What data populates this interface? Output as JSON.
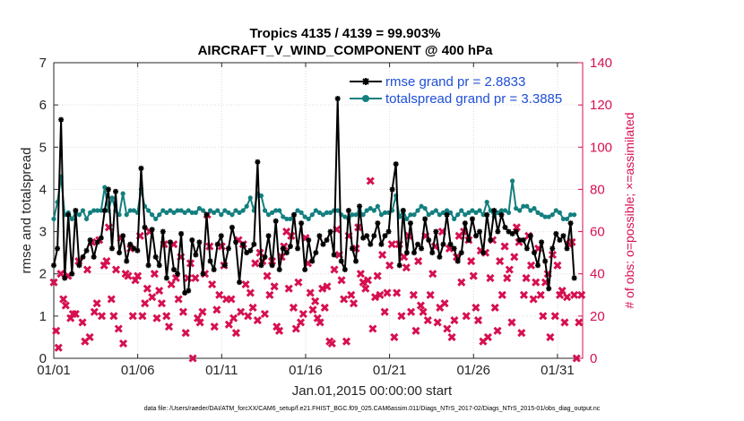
{
  "chart_data": {
    "type": "line",
    "title_line1": "Tropics 4135 / 4139 = 99.903%",
    "title_line2": "AIRCRAFT_V_WIND_COMPONENT @ 400 hPa",
    "xlabel": "Jan.01,2015 00:00:00 start",
    "ylabel": "rmse and totalspread",
    "y2label": "# of obs: o=possible; ×=assimilated",
    "footnote": "data file: /Users/raeder/DAI/ATM_forcXX/CAM6_setup/f.e21.FHIST_BGC.f09_025.CAM6assim.011/Diags_NTrS_2017-02/Diags_NTrS_2015-01/obs_diag_output.nc",
    "x_tick_labels": [
      "01/01",
      "01/06",
      "01/11",
      "01/16",
      "01/21",
      "01/26",
      "01/31"
    ],
    "x_tick_days": [
      0,
      5,
      10,
      15,
      20,
      25,
      30
    ],
    "xlim": [
      0,
      31.5
    ],
    "ylim": [
      0,
      7
    ],
    "y_ticks": [
      0,
      1,
      2,
      3,
      4,
      5,
      6,
      7
    ],
    "y2lim": [
      0,
      140
    ],
    "y2_ticks": [
      0,
      20,
      40,
      60,
      80,
      100,
      120,
      140
    ],
    "grid": true,
    "legend_position": "top-right",
    "series": [
      {
        "name": "rmse grand pr = 2.8833",
        "color": "#000000",
        "marker": "star",
        "values": [
          2.2,
          2.6,
          5.65,
          1.9,
          3.4,
          2.0,
          3.5,
          2.2,
          2.4,
          2.55,
          2.8,
          2.4,
          2.75,
          2.85,
          3.5,
          4.0,
          2.6,
          3.95,
          2.5,
          2.9,
          2.3,
          2.7,
          2.6,
          2.55,
          4.5,
          3.1,
          2.2,
          3.05,
          2.4,
          2.2,
          3.0,
          1.9,
          2.75,
          2.1,
          2.0,
          2.95,
          1.55,
          1.6,
          2.8,
          2.45,
          2.75,
          2.0,
          3.4,
          2.3,
          2.1,
          2.7,
          2.9,
          2.2,
          2.6,
          3.1,
          2.75,
          1.8,
          2.7,
          2.5,
          2.55,
          2.7,
          4.65,
          2.2,
          2.4,
          2.9,
          2.2,
          3.25,
          2.1,
          2.6,
          2.5,
          2.65,
          3.4,
          2.6,
          3.2,
          2.1,
          2.8,
          2.3,
          2.5,
          2.9,
          2.7,
          2.8,
          3.0,
          2.45,
          6.15,
          2.3,
          2.1,
          3.5,
          2.6,
          2.3,
          3.6,
          2.85,
          2.9,
          2.7,
          2.9,
          3.2,
          2.7,
          2.9,
          3.0,
          4.0,
          4.6,
          2.2,
          3.5,
          2.5,
          3.2,
          2.5,
          2.7,
          2.6,
          3.3,
          2.8,
          2.5,
          3.0,
          2.4,
          2.7,
          3.4,
          2.7,
          2.6,
          2.3,
          2.5,
          3.2,
          2.8,
          3.3,
          2.9,
          3.0,
          2.5,
          3.4,
          2.8,
          3.5,
          3.0,
          3.4,
          3.1,
          3.0,
          2.95,
          3.0,
          2.8,
          2.8,
          2.6,
          2.9,
          2.5,
          2.2,
          2.75,
          2.3,
          1.65,
          2.6,
          2.95,
          2.8,
          2.9,
          2.6,
          3.2,
          1.9
        ]
      },
      {
        "name": "totalspread grand pr = 3.3885",
        "color": "#137f7f",
        "marker": "circle",
        "values": [
          3.3,
          3.7,
          4.3,
          3.4,
          3.45,
          3.3,
          3.45,
          3.4,
          3.5,
          3.3,
          3.45,
          3.5,
          3.5,
          3.5,
          4.05,
          3.5,
          3.8,
          3.5,
          3.4,
          3.9,
          3.4,
          3.5,
          3.5,
          3.45,
          4.0,
          3.6,
          3.5,
          3.4,
          3.3,
          3.4,
          3.5,
          3.45,
          3.5,
          3.45,
          3.5,
          3.5,
          3.45,
          3.5,
          3.45,
          3.45,
          3.55,
          3.5,
          3.4,
          3.5,
          3.45,
          3.5,
          3.4,
          3.5,
          3.45,
          3.4,
          3.5,
          3.45,
          3.5,
          3.6,
          3.8,
          3.5,
          3.9,
          3.85,
          3.5,
          3.4,
          3.45,
          3.5,
          3.5,
          3.35,
          3.3,
          3.3,
          3.4,
          3.5,
          3.45,
          3.35,
          3.3,
          3.4,
          3.5,
          3.45,
          3.4,
          3.45,
          3.45,
          3.5,
          3.5,
          3.4,
          3.35,
          3.3,
          3.4,
          3.4,
          3.5,
          3.4,
          3.5,
          3.55,
          3.5,
          3.6,
          3.4,
          3.45,
          3.45,
          3.5,
          3.85,
          3.35,
          3.5,
          3.3,
          3.4,
          3.4,
          3.5,
          3.6,
          3.55,
          3.4,
          3.45,
          3.5,
          3.4,
          3.45,
          3.5,
          3.45,
          3.3,
          3.4,
          3.5,
          3.4,
          3.45,
          3.5,
          3.45,
          3.5,
          3.4,
          3.7,
          3.5,
          3.35,
          3.45,
          3.5,
          3.5,
          3.45,
          4.2,
          3.55,
          3.5,
          3.6,
          3.6,
          3.5,
          3.55,
          3.45,
          3.4,
          3.35,
          3.35,
          3.4,
          3.5,
          3.45,
          3.3,
          3.3,
          3.4,
          3.4
        ]
      },
      {
        "name": "obs possible/assimilated",
        "color": "#d6104f",
        "marker": "x",
        "axis": "right",
        "points": [
          [
            0.0,
            36
          ],
          [
            0.14,
            13
          ],
          [
            0.28,
            5
          ],
          [
            0.42,
            40
          ],
          [
            0.57,
            28
          ],
          [
            0.71,
            25
          ],
          [
            0.85,
            39
          ],
          [
            1.0,
            19
          ],
          [
            1.14,
            21
          ],
          [
            1.3,
            21
          ],
          [
            1.48,
            46
          ],
          [
            1.71,
            17
          ],
          [
            1.86,
            8
          ],
          [
            2.0,
            42
          ],
          [
            2.14,
            10
          ],
          [
            2.28,
            55
          ],
          [
            2.42,
            22
          ],
          [
            2.57,
            26
          ],
          [
            2.71,
            56
          ],
          [
            2.86,
            20
          ],
          [
            3.0,
            44
          ],
          [
            3.14,
            46
          ],
          [
            3.28,
            62
          ],
          [
            3.43,
            28
          ],
          [
            3.57,
            20
          ],
          [
            3.71,
            42
          ],
          [
            3.86,
            14
          ],
          [
            4.0,
            57
          ],
          [
            4.14,
            7
          ],
          [
            4.28,
            40
          ],
          [
            4.43,
            39
          ],
          [
            4.57,
            52
          ],
          [
            4.71,
            20
          ],
          [
            4.86,
            37
          ],
          [
            5.0,
            39
          ],
          [
            5.14,
            58
          ],
          [
            5.28,
            20
          ],
          [
            5.43,
            26
          ],
          [
            5.57,
            33
          ],
          [
            5.71,
            60
          ],
          [
            5.86,
            29
          ],
          [
            6.0,
            40
          ],
          [
            6.14,
            19
          ],
          [
            6.28,
            32
          ],
          [
            6.43,
            26
          ],
          [
            6.57,
            54
          ],
          [
            6.71,
            20
          ],
          [
            6.86,
            15
          ],
          [
            7.0,
            35
          ],
          [
            7.14,
            54
          ],
          [
            7.28,
            38
          ],
          [
            7.43,
            28
          ],
          [
            7.57,
            48
          ],
          [
            7.71,
            22
          ],
          [
            7.86,
            12
          ],
          [
            8.0,
            38
          ],
          [
            8.14,
            45
          ],
          [
            8.28,
            0
          ],
          [
            8.43,
            38
          ],
          [
            8.57,
            19
          ],
          [
            8.71,
            17
          ],
          [
            8.86,
            22
          ],
          [
            9.0,
            40
          ],
          [
            9.14,
            68
          ],
          [
            9.28,
            53
          ],
          [
            9.43,
            35
          ],
          [
            9.57,
            15
          ],
          [
            9.71,
            23
          ],
          [
            9.86,
            30
          ],
          [
            10.0,
            53
          ],
          [
            10.14,
            44
          ],
          [
            10.28,
            28
          ],
          [
            10.43,
            16
          ],
          [
            10.57,
            28
          ],
          [
            10.71,
            19
          ],
          [
            10.86,
            12
          ],
          [
            11.0,
            56
          ],
          [
            11.14,
            22
          ],
          [
            11.28,
            54
          ],
          [
            11.43,
            35
          ],
          [
            11.57,
            20
          ],
          [
            11.71,
            31
          ],
          [
            11.86,
            24
          ],
          [
            12.0,
            45
          ],
          [
            12.14,
            18
          ],
          [
            12.28,
            50
          ],
          [
            12.43,
            46
          ],
          [
            12.57,
            21
          ],
          [
            12.71,
            39
          ],
          [
            12.86,
            30
          ],
          [
            13.0,
            46
          ],
          [
            13.14,
            34
          ],
          [
            13.28,
            15
          ],
          [
            13.43,
            13
          ],
          [
            13.57,
            48
          ],
          [
            13.71,
            53
          ],
          [
            13.86,
            60
          ],
          [
            14.0,
            33
          ],
          [
            14.14,
            58
          ],
          [
            14.28,
            24
          ],
          [
            14.43,
            14
          ],
          [
            14.57,
            36
          ],
          [
            14.71,
            17
          ],
          [
            14.86,
            21
          ],
          [
            15.0,
            57
          ],
          [
            15.14,
            45
          ],
          [
            15.28,
            31
          ],
          [
            15.43,
            23
          ],
          [
            15.57,
            27
          ],
          [
            15.71,
            19
          ],
          [
            15.86,
            17
          ],
          [
            16.0,
            33
          ],
          [
            16.14,
            24
          ],
          [
            16.28,
            34
          ],
          [
            16.43,
            8
          ],
          [
            16.57,
            7
          ],
          [
            16.71,
            42
          ],
          [
            16.86,
            61
          ],
          [
            17.0,
            49
          ],
          [
            17.14,
            37
          ],
          [
            17.28,
            28
          ],
          [
            17.43,
            8
          ],
          [
            17.57,
            58
          ],
          [
            17.71,
            30
          ],
          [
            17.86,
            26
          ],
          [
            18.0,
            52
          ],
          [
            18.14,
            62
          ],
          [
            18.28,
            40
          ],
          [
            18.43,
            36
          ],
          [
            18.57,
            33
          ],
          [
            18.71,
            37
          ],
          [
            18.86,
            84
          ],
          [
            19.0,
            14
          ],
          [
            19.14,
            29
          ],
          [
            19.28,
            39
          ],
          [
            19.43,
            30
          ],
          [
            19.57,
            49
          ],
          [
            19.71,
            22
          ],
          [
            19.86,
            31
          ],
          [
            20.0,
            44
          ],
          [
            20.14,
            54
          ],
          [
            20.28,
            10
          ],
          [
            20.43,
            31
          ],
          [
            20.57,
            54
          ],
          [
            20.71,
            20
          ],
          [
            20.86,
            48
          ],
          [
            21.0,
            43
          ],
          [
            21.14,
            58
          ],
          [
            21.28,
            22
          ],
          [
            21.43,
            30
          ],
          [
            21.57,
            13
          ],
          [
            21.71,
            46
          ],
          [
            21.86,
            25
          ],
          [
            22.0,
            22
          ],
          [
            22.14,
            58
          ],
          [
            22.28,
            18
          ],
          [
            22.43,
            30
          ],
          [
            22.57,
            40
          ],
          [
            22.71,
            53
          ],
          [
            22.86,
            17
          ],
          [
            23.0,
            24
          ],
          [
            23.14,
            60
          ],
          [
            23.28,
            26
          ],
          [
            23.43,
            14
          ],
          [
            23.57,
            52
          ],
          [
            23.71,
            10
          ],
          [
            23.86,
            18
          ],
          [
            24.0,
            48
          ],
          [
            24.14,
            58
          ],
          [
            24.28,
            36
          ],
          [
            24.43,
            60
          ],
          [
            24.57,
            20
          ],
          [
            24.71,
            56
          ],
          [
            24.86,
            46
          ],
          [
            25.0,
            39
          ],
          [
            25.14,
            24
          ],
          [
            25.28,
            18
          ],
          [
            25.43,
            51
          ],
          [
            25.57,
            8
          ],
          [
            25.71,
            50
          ],
          [
            25.86,
            10
          ],
          [
            26.0,
            38
          ],
          [
            26.14,
            56
          ],
          [
            26.28,
            24
          ],
          [
            26.43,
            13
          ],
          [
            26.57,
            46
          ],
          [
            26.71,
            30
          ],
          [
            26.86,
            53
          ],
          [
            27.0,
            38
          ],
          [
            27.14,
            42
          ],
          [
            27.28,
            17
          ],
          [
            27.43,
            48
          ],
          [
            27.57,
            62
          ],
          [
            27.71,
            55
          ],
          [
            27.86,
            12
          ],
          [
            28.0,
            30
          ],
          [
            28.14,
            38
          ],
          [
            28.28,
            58
          ],
          [
            28.43,
            44
          ],
          [
            28.57,
            28
          ],
          [
            28.71,
            36
          ],
          [
            28.86,
            52
          ],
          [
            29.0,
            30
          ],
          [
            29.14,
            20
          ],
          [
            29.28,
            36
          ],
          [
            29.43,
            40
          ],
          [
            29.57,
            10
          ],
          [
            29.71,
            49
          ],
          [
            29.86,
            20
          ],
          [
            30.0,
            44
          ],
          [
            30.14,
            30
          ],
          [
            30.28,
            32
          ],
          [
            30.43,
            17
          ],
          [
            30.57,
            29
          ],
          [
            30.71,
            54
          ],
          [
            30.86,
            55
          ],
          [
            31.0,
            30
          ],
          [
            31.14,
            0
          ],
          [
            31.28,
            17
          ],
          [
            31.43,
            30
          ]
        ]
      }
    ]
  }
}
